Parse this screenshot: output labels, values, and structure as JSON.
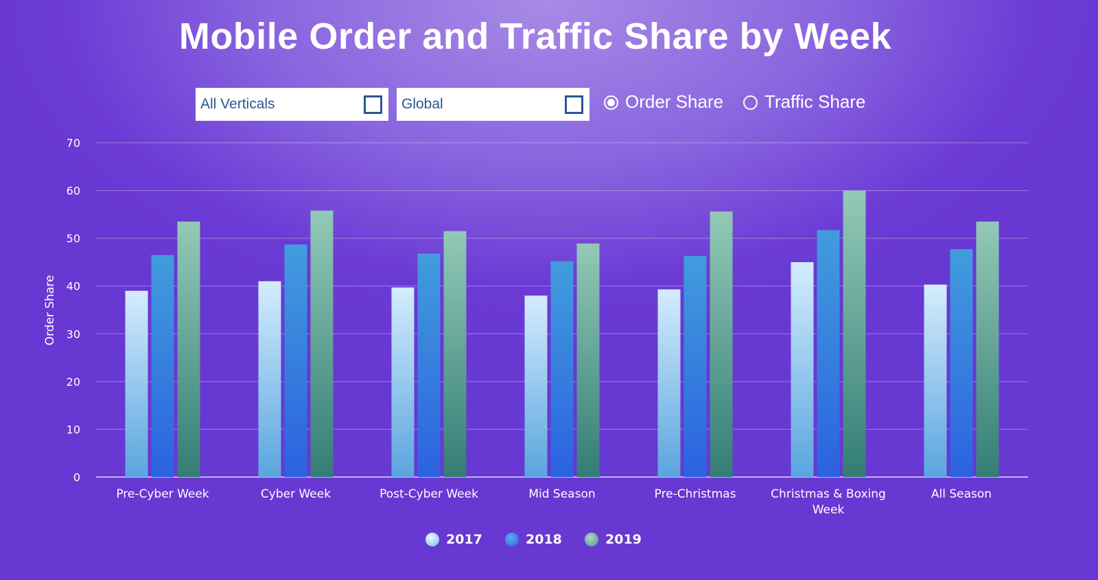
{
  "title": "Mobile Order and Traffic Share by Week",
  "controls": {
    "vertical_select": "All Verticals",
    "region_select": "Global",
    "radios": [
      {
        "label": "Order Share",
        "selected": true
      },
      {
        "label": "Traffic Share",
        "selected": false
      }
    ]
  },
  "colors": {
    "background": "#6b3ad5",
    "series_2017": "#c9e6fb",
    "series_2018": "#3a7be0",
    "series_2019": "#8ec6b2"
  },
  "chart_data": {
    "type": "bar",
    "ylabel": "Order Share",
    "xlabel": "",
    "ylim": [
      0,
      70
    ],
    "yticks": [
      0,
      10,
      20,
      30,
      40,
      50,
      60,
      70
    ],
    "grid": true,
    "legend_position": "bottom-center",
    "categories": [
      [
        "Pre-Cyber Week"
      ],
      [
        "Cyber Week"
      ],
      [
        "Post-Cyber Week"
      ],
      [
        "Mid Season"
      ],
      [
        "Pre-Christmas"
      ],
      [
        "Christmas & Boxing",
        "Week"
      ],
      [
        "All Season"
      ]
    ],
    "series": [
      {
        "name": "2017",
        "values": [
          39.0,
          41.0,
          39.7,
          38.0,
          39.3,
          45.0,
          40.3
        ]
      },
      {
        "name": "2018",
        "values": [
          46.5,
          48.7,
          46.8,
          45.2,
          46.3,
          51.7,
          47.7
        ]
      },
      {
        "name": "2019",
        "values": [
          53.5,
          55.8,
          51.5,
          48.9,
          55.6,
          60.0,
          53.5
        ]
      }
    ]
  }
}
